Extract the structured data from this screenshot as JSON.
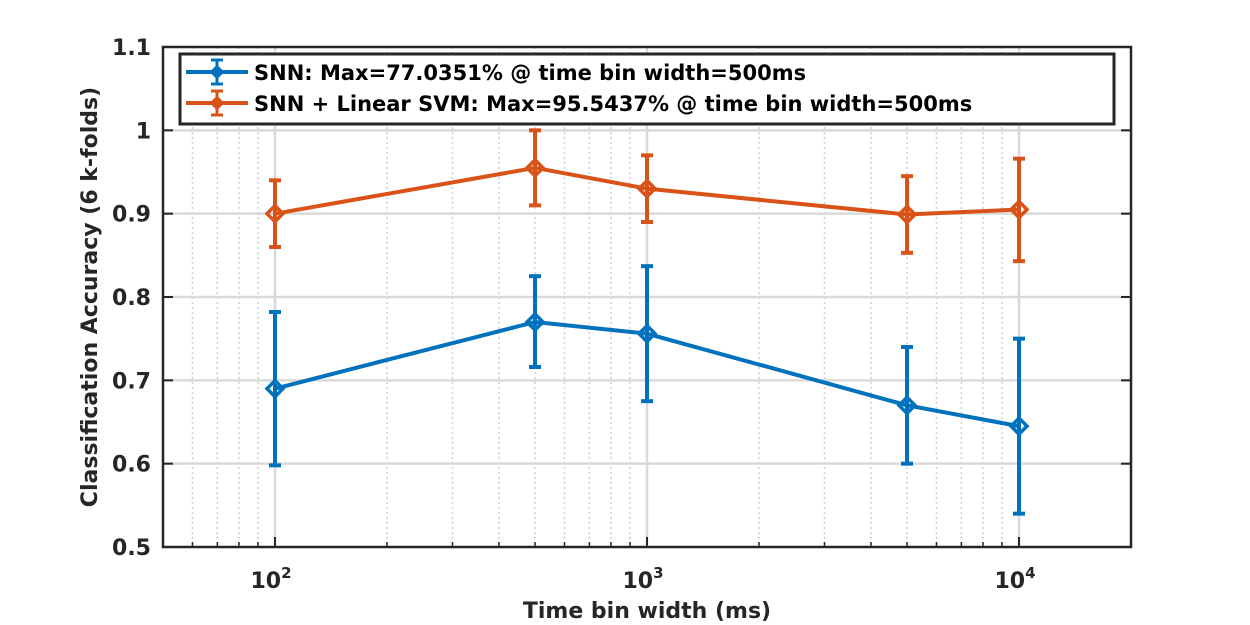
{
  "chart_data": {
    "type": "line",
    "xscale": "log",
    "xlabel": "Time bin width (ms)",
    "ylabel": "Classification Accuracy (6 k-folds)",
    "xlim": [
      50,
      20000
    ],
    "ylim": [
      0.5,
      1.1
    ],
    "grid": true,
    "legend_position": "top",
    "x_ticks": [
      {
        "value": 100,
        "base": "10",
        "exp": "2"
      },
      {
        "value": 1000,
        "base": "10",
        "exp": "3"
      },
      {
        "value": 10000,
        "base": "10",
        "exp": "4"
      }
    ],
    "y_ticks": [
      "0.5",
      "0.6",
      "0.7",
      "0.8",
      "0.9",
      "1",
      "1.1"
    ],
    "x": [
      100,
      500,
      1000,
      5000,
      10000
    ],
    "series": [
      {
        "name": "SNN: Max=77.0351% @ time bin width=500ms",
        "color": "#0072BD",
        "values": [
          0.69,
          0.77,
          0.756,
          0.67,
          0.645
        ],
        "err_low": [
          0.598,
          0.716,
          0.675,
          0.6,
          0.54
        ],
        "err_high": [
          0.782,
          0.825,
          0.837,
          0.74,
          0.75
        ]
      },
      {
        "name": "SNN + Linear SVM: Max=95.5437% @ time bin width=500ms",
        "color": "#D95319",
        "values": [
          0.9,
          0.955,
          0.93,
          0.899,
          0.905
        ],
        "err_low": [
          0.86,
          0.91,
          0.89,
          0.853,
          0.843
        ],
        "err_high": [
          0.94,
          1.0,
          0.97,
          0.945,
          0.966
        ]
      }
    ]
  }
}
